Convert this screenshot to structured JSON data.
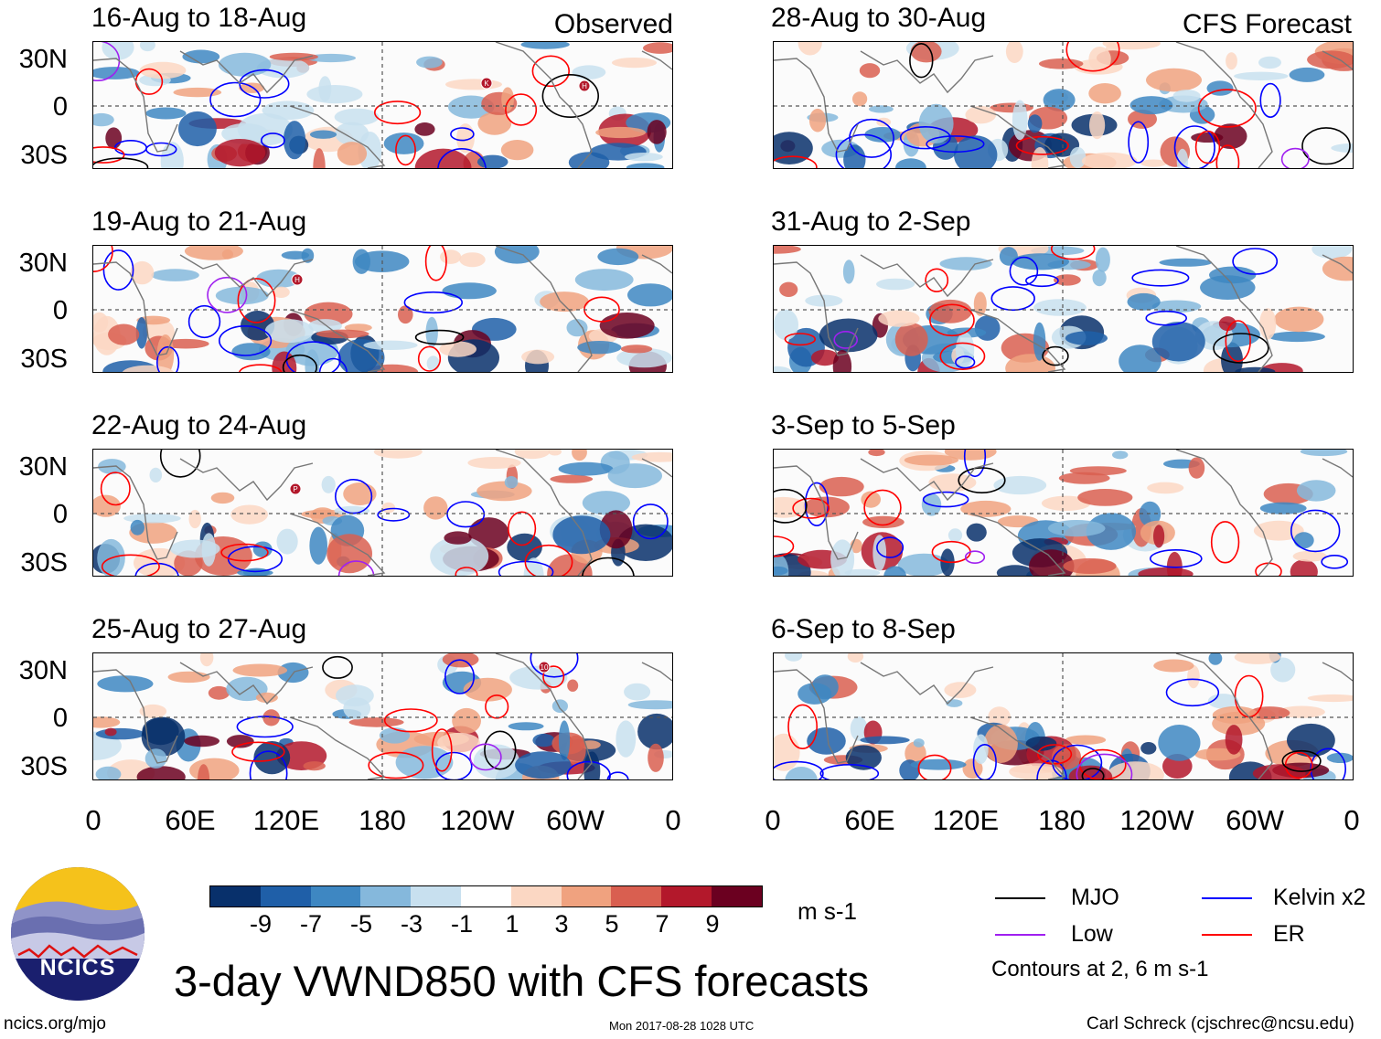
{
  "panels": [
    {
      "title": "16-Aug to 18-Aug",
      "tag": "Observed",
      "storms": [
        "K",
        "H"
      ]
    },
    {
      "title": "19-Aug to 21-Aug",
      "tag": "",
      "storms": [
        "H"
      ]
    },
    {
      "title": "22-Aug to 24-Aug",
      "tag": "",
      "storms": [
        "P"
      ]
    },
    {
      "title": "25-Aug to 27-Aug",
      "tag": "",
      "storms": [
        "10"
      ]
    },
    {
      "title": "28-Aug to 30-Aug",
      "tag": "CFS Forecast",
      "storms": []
    },
    {
      "title": "31-Aug to 2-Sep",
      "tag": "",
      "storms": []
    },
    {
      "title": "3-Sep to 5-Sep",
      "tag": "",
      "storms": []
    },
    {
      "title": "6-Sep to 8-Sep",
      "tag": "",
      "storms": []
    }
  ],
  "lat_labels": [
    "30N",
    "0",
    "30S"
  ],
  "lon_labels": [
    "0",
    "60E",
    "120E",
    "180",
    "120W",
    "60W",
    "0"
  ],
  "colorbar": {
    "colors": [
      "#08306b",
      "#1f5fa8",
      "#3e87c2",
      "#85b8dc",
      "#c8e0ef",
      "#ffffff",
      "#fbd7c3",
      "#f0a27f",
      "#d95f50",
      "#b3182b",
      "#6b0020"
    ],
    "ticks": [
      "-9",
      "-7",
      "-5",
      "-3",
      "-1",
      "1",
      "3",
      "5",
      "7",
      "9"
    ],
    "units": "m s-1"
  },
  "legend": {
    "items": [
      {
        "label": "MJO",
        "color": "#000000"
      },
      {
        "label": "Kelvin x2",
        "color": "#0000ff"
      },
      {
        "label": "Low",
        "color": "#a020f0"
      },
      {
        "label": "ER",
        "color": "#ff0000"
      }
    ],
    "note": "Contours at 2, 6 m s-1"
  },
  "title": "3-day VWND850 with CFS forecasts",
  "footer": {
    "left": "ncics.org/mjo",
    "center": "Mon 2017-08-28 1028 UTC",
    "right": "Carl Schreck (cjschrec@ncsu.edu)"
  },
  "logo": {
    "text": "NCICS"
  }
}
